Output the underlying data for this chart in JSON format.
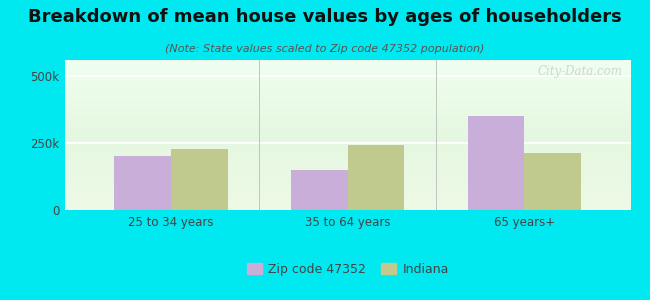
{
  "title": "Breakdown of mean house values by ages of householders",
  "subtitle": "(Note: State values scaled to Zip code 47352 population)",
  "categories": [
    "25 to 34 years",
    "35 to 64 years",
    "65 years+"
  ],
  "zip_values": [
    200000,
    148000,
    352000
  ],
  "indiana_values": [
    228000,
    242000,
    213000
  ],
  "zip_color": "#c9aed9",
  "indiana_color": "#c0ca8e",
  "background_color": "#00e8f0",
  "ylim": [
    0,
    560000
  ],
  "ytick_positions": [
    0,
    250000,
    500000
  ],
  "ytick_labels": [
    "0",
    "250k",
    "500k"
  ],
  "bar_width": 0.32,
  "legend_label_zip": "Zip code 47352",
  "legend_label_indiana": "Indiana",
  "watermark": "City-Data.com",
  "title_fontsize": 13,
  "subtitle_fontsize": 8,
  "tick_fontsize": 8.5,
  "legend_fontsize": 9
}
